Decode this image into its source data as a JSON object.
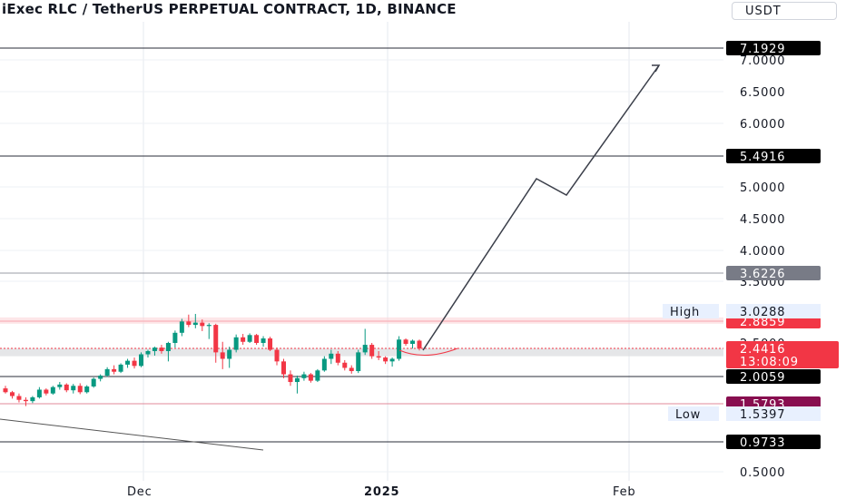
{
  "header": {
    "title": "iExec RLC / TetherUS PERPETUAL CONTRACT, 1D, BINANCE",
    "currency": "USDT"
  },
  "chart_data": {
    "type": "candlestick",
    "symbol": "iExec RLC / TetherUS PERPETUAL CONTRACT",
    "interval": "1D",
    "exchange": "BINANCE",
    "currency": "USDT",
    "x_ticks": [
      "Dec",
      "2025",
      "Feb"
    ],
    "y_ticks": [
      "0.5000",
      "3.5000",
      "4.0000",
      "4.5000",
      "5.0000",
      "6.0000",
      "6.5000",
      "7.0000"
    ],
    "y_range": [
      0.4,
      7.6
    ],
    "grid": true,
    "levels": [
      {
        "label": "7.1929",
        "value": 7.1929,
        "color": "#000000"
      },
      {
        "label": "5.4916",
        "value": 5.4916,
        "color": "#000000"
      },
      {
        "label": "3.6226",
        "value": 3.6226,
        "color": "#787b86"
      },
      {
        "label": "2.8859",
        "value": 2.8859,
        "color": "#f23645"
      },
      {
        "label": "2.0059",
        "value": 2.0059,
        "color": "#000000"
      },
      {
        "label": "1.5793",
        "value": 1.5793,
        "color": "#880e4f"
      },
      {
        "label": "0.9733",
        "value": 0.9733,
        "color": "#000000"
      }
    ],
    "high": {
      "label": "High",
      "value": "3.0288"
    },
    "low": {
      "label": "Low",
      "value": "1.5397"
    },
    "last_price": {
      "value": "2.4416",
      "countdown": "13:08:09",
      "partial_label": "2.5000"
    },
    "candles": [
      [
        1.82,
        1.86,
        1.74,
        1.76
      ],
      [
        1.76,
        1.78,
        1.66,
        1.7
      ],
      [
        1.7,
        1.74,
        1.6,
        1.64
      ],
      [
        1.64,
        1.68,
        1.57,
        1.62
      ],
      [
        1.62,
        1.7,
        1.59,
        1.68
      ],
      [
        1.68,
        1.84,
        1.66,
        1.8
      ],
      [
        1.8,
        1.82,
        1.71,
        1.74
      ],
      [
        1.74,
        1.86,
        1.72,
        1.84
      ],
      [
        1.84,
        1.92,
        1.8,
        1.88
      ],
      [
        1.88,
        1.9,
        1.76,
        1.79
      ],
      [
        1.79,
        1.89,
        1.74,
        1.86
      ],
      [
        1.86,
        1.9,
        1.73,
        1.76
      ],
      [
        1.76,
        1.87,
        1.74,
        1.85
      ],
      [
        1.85,
        1.99,
        1.83,
        1.97
      ],
      [
        1.97,
        2.04,
        1.93,
        2.02
      ],
      [
        2.02,
        2.15,
        2.0,
        2.12
      ],
      [
        2.12,
        2.18,
        2.04,
        2.08
      ],
      [
        2.08,
        2.21,
        2.06,
        2.19
      ],
      [
        2.19,
        2.28,
        2.14,
        2.25
      ],
      [
        2.25,
        2.3,
        2.13,
        2.17
      ],
      [
        2.17,
        2.38,
        2.15,
        2.35
      ],
      [
        2.35,
        2.42,
        2.3,
        2.4
      ],
      [
        2.4,
        2.46,
        2.33,
        2.45
      ],
      [
        2.45,
        2.48,
        2.36,
        2.4
      ],
      [
        2.4,
        2.52,
        2.24,
        2.5
      ],
      [
        2.5,
        2.72,
        2.45,
        2.68
      ],
      [
        2.68,
        2.92,
        2.62,
        2.88
      ],
      [
        2.88,
        2.98,
        2.78,
        2.82
      ],
      [
        2.82,
        2.99,
        2.76,
        2.86
      ],
      [
        2.86,
        2.91,
        2.71,
        2.8
      ],
      [
        2.8,
        2.85,
        2.57,
        2.82
      ],
      [
        2.82,
        2.84,
        2.22,
        2.38
      ],
      [
        2.38,
        2.52,
        2.12,
        2.28
      ],
      [
        2.28,
        2.46,
        2.14,
        2.42
      ],
      [
        2.42,
        2.65,
        2.38,
        2.6
      ],
      [
        2.6,
        2.66,
        2.48,
        2.52
      ],
      [
        2.52,
        2.67,
        2.5,
        2.64
      ],
      [
        2.64,
        2.66,
        2.48,
        2.5
      ],
      [
        2.5,
        2.62,
        2.46,
        2.58
      ],
      [
        2.58,
        2.61,
        2.4,
        2.42
      ],
      [
        2.42,
        2.45,
        2.18,
        2.24
      ],
      [
        2.24,
        2.28,
        1.98,
        2.04
      ],
      [
        2.04,
        2.1,
        1.86,
        1.92
      ],
      [
        1.92,
        2.02,
        1.74,
        1.98
      ],
      [
        1.98,
        2.08,
        1.94,
        2.04
      ],
      [
        2.04,
        2.06,
        1.91,
        1.94
      ],
      [
        1.94,
        2.12,
        1.92,
        2.1
      ],
      [
        2.1,
        2.32,
        2.08,
        2.28
      ],
      [
        2.28,
        2.42,
        2.2,
        2.36
      ],
      [
        2.36,
        2.4,
        2.18,
        2.22
      ],
      [
        2.22,
        2.26,
        2.1,
        2.14
      ],
      [
        2.14,
        2.18,
        2.05,
        2.09
      ],
      [
        2.09,
        2.42,
        2.06,
        2.38
      ],
      [
        2.38,
        2.75,
        2.34,
        2.48
      ],
      [
        2.48,
        2.5,
        2.28,
        2.32
      ],
      [
        2.32,
        2.4,
        2.26,
        2.3
      ],
      [
        2.3,
        2.32,
        2.2,
        2.24
      ],
      [
        2.24,
        2.3,
        2.16,
        2.28
      ],
      [
        2.28,
        2.62,
        2.25,
        2.56
      ],
      [
        2.56,
        2.58,
        2.47,
        2.49
      ],
      [
        2.49,
        2.56,
        2.44,
        2.54
      ],
      [
        2.54,
        2.56,
        2.41,
        2.44
      ]
    ],
    "projection": [
      [
        2.44,
        2.47
      ],
      [
        5.16,
        5.22
      ],
      [
        4.88,
        5.43
      ],
      [
        7.02,
        6.96
      ]
    ],
    "trendline": [
      [
        1.95,
        0.0
      ],
      [
        1.0,
        0.0
      ]
    ]
  }
}
